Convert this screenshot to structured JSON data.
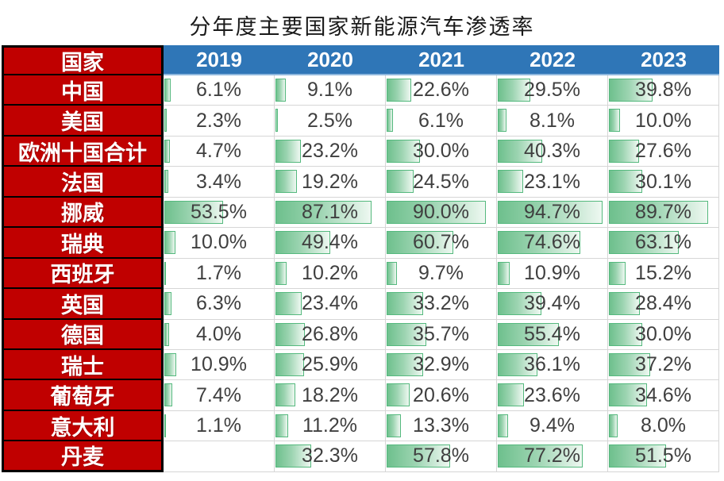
{
  "title": "分年度主要国家新能源汽车渗透率",
  "chart_data": {
    "type": "table",
    "title": "分年度主要国家新能源汽车渗透率",
    "row_header": "国家",
    "categories": [
      "2019",
      "2020",
      "2021",
      "2022",
      "2023"
    ],
    "series": [
      {
        "name": "中国",
        "values": [
          6.1,
          9.1,
          22.6,
          29.5,
          39.8
        ],
        "labels": [
          "6.1%",
          "9.1%",
          "22.6%",
          "29.5%",
          "39.8%"
        ]
      },
      {
        "name": "美国",
        "values": [
          2.3,
          2.5,
          6.1,
          8.1,
          10.0
        ],
        "labels": [
          "2.3%",
          "2.5%",
          "6.1%",
          "8.1%",
          "10.0%"
        ]
      },
      {
        "name": "欧洲十国合计",
        "values": [
          4.7,
          23.2,
          30.0,
          40.3,
          27.6
        ],
        "labels": [
          "4.7%",
          "23.2%",
          "30.0%",
          "40.3%",
          "27.6%"
        ]
      },
      {
        "name": "法国",
        "values": [
          3.4,
          19.2,
          24.5,
          23.1,
          30.1
        ],
        "labels": [
          "3.4%",
          "19.2%",
          "24.5%",
          "23.1%",
          "30.1%"
        ]
      },
      {
        "name": "挪威",
        "values": [
          53.5,
          87.1,
          90.0,
          94.7,
          89.7
        ],
        "labels": [
          "53.5%",
          "87.1%",
          "90.0%",
          "94.7%",
          "89.7%"
        ]
      },
      {
        "name": "瑞典",
        "values": [
          10.0,
          49.4,
          60.7,
          74.6,
          63.1
        ],
        "labels": [
          "10.0%",
          "49.4%",
          "60.7%",
          "74.6%",
          "63.1%"
        ]
      },
      {
        "name": "西班牙",
        "values": [
          1.7,
          10.2,
          9.7,
          10.9,
          15.2
        ],
        "labels": [
          "1.7%",
          "10.2%",
          "9.7%",
          "10.9%",
          "15.2%"
        ]
      },
      {
        "name": "英国",
        "values": [
          6.3,
          23.4,
          33.2,
          39.4,
          28.4
        ],
        "labels": [
          "6.3%",
          "23.4%",
          "33.2%",
          "39.4%",
          "28.4%"
        ]
      },
      {
        "name": "德国",
        "values": [
          4.0,
          26.8,
          35.7,
          55.4,
          30.0
        ],
        "labels": [
          "4.0%",
          "26.8%",
          "35.7%",
          "55.4%",
          "30.0%"
        ]
      },
      {
        "name": "瑞士",
        "values": [
          10.9,
          25.9,
          32.9,
          36.1,
          37.2
        ],
        "labels": [
          "10.9%",
          "25.9%",
          "32.9%",
          "36.1%",
          "37.2%"
        ]
      },
      {
        "name": "葡萄牙",
        "values": [
          7.4,
          18.2,
          20.6,
          23.6,
          34.6
        ],
        "labels": [
          "7.4%",
          "18.2%",
          "20.6%",
          "23.6%",
          "34.6%"
        ]
      },
      {
        "name": "意大利",
        "values": [
          1.1,
          11.2,
          13.3,
          9.4,
          8.0
        ],
        "labels": [
          "1.1%",
          "11.2%",
          "13.3%",
          "9.4%",
          "8.0%"
        ]
      },
      {
        "name": "丹麦",
        "values": [
          null,
          32.3,
          57.8,
          77.2,
          51.5
        ],
        "labels": [
          "",
          "32.3%",
          "57.8%",
          "77.2%",
          "51.5%"
        ]
      }
    ],
    "value_format": "percent",
    "bar_scale": [
      0,
      100
    ],
    "legend": "none",
    "grid": true
  },
  "colors": {
    "header_blue": "#2F76B7",
    "header_blue_light": "#8FB8DE",
    "label_red": "#C00000",
    "label_border": "#000000",
    "bar_green": "#6EC08D",
    "bar_green_mid": "#9CD4B1",
    "bar_green_light": "#EEF8F1",
    "bar_border": "#55B97E",
    "value_text": "#3F3F3F",
    "gridline": "#D6D6D6"
  }
}
